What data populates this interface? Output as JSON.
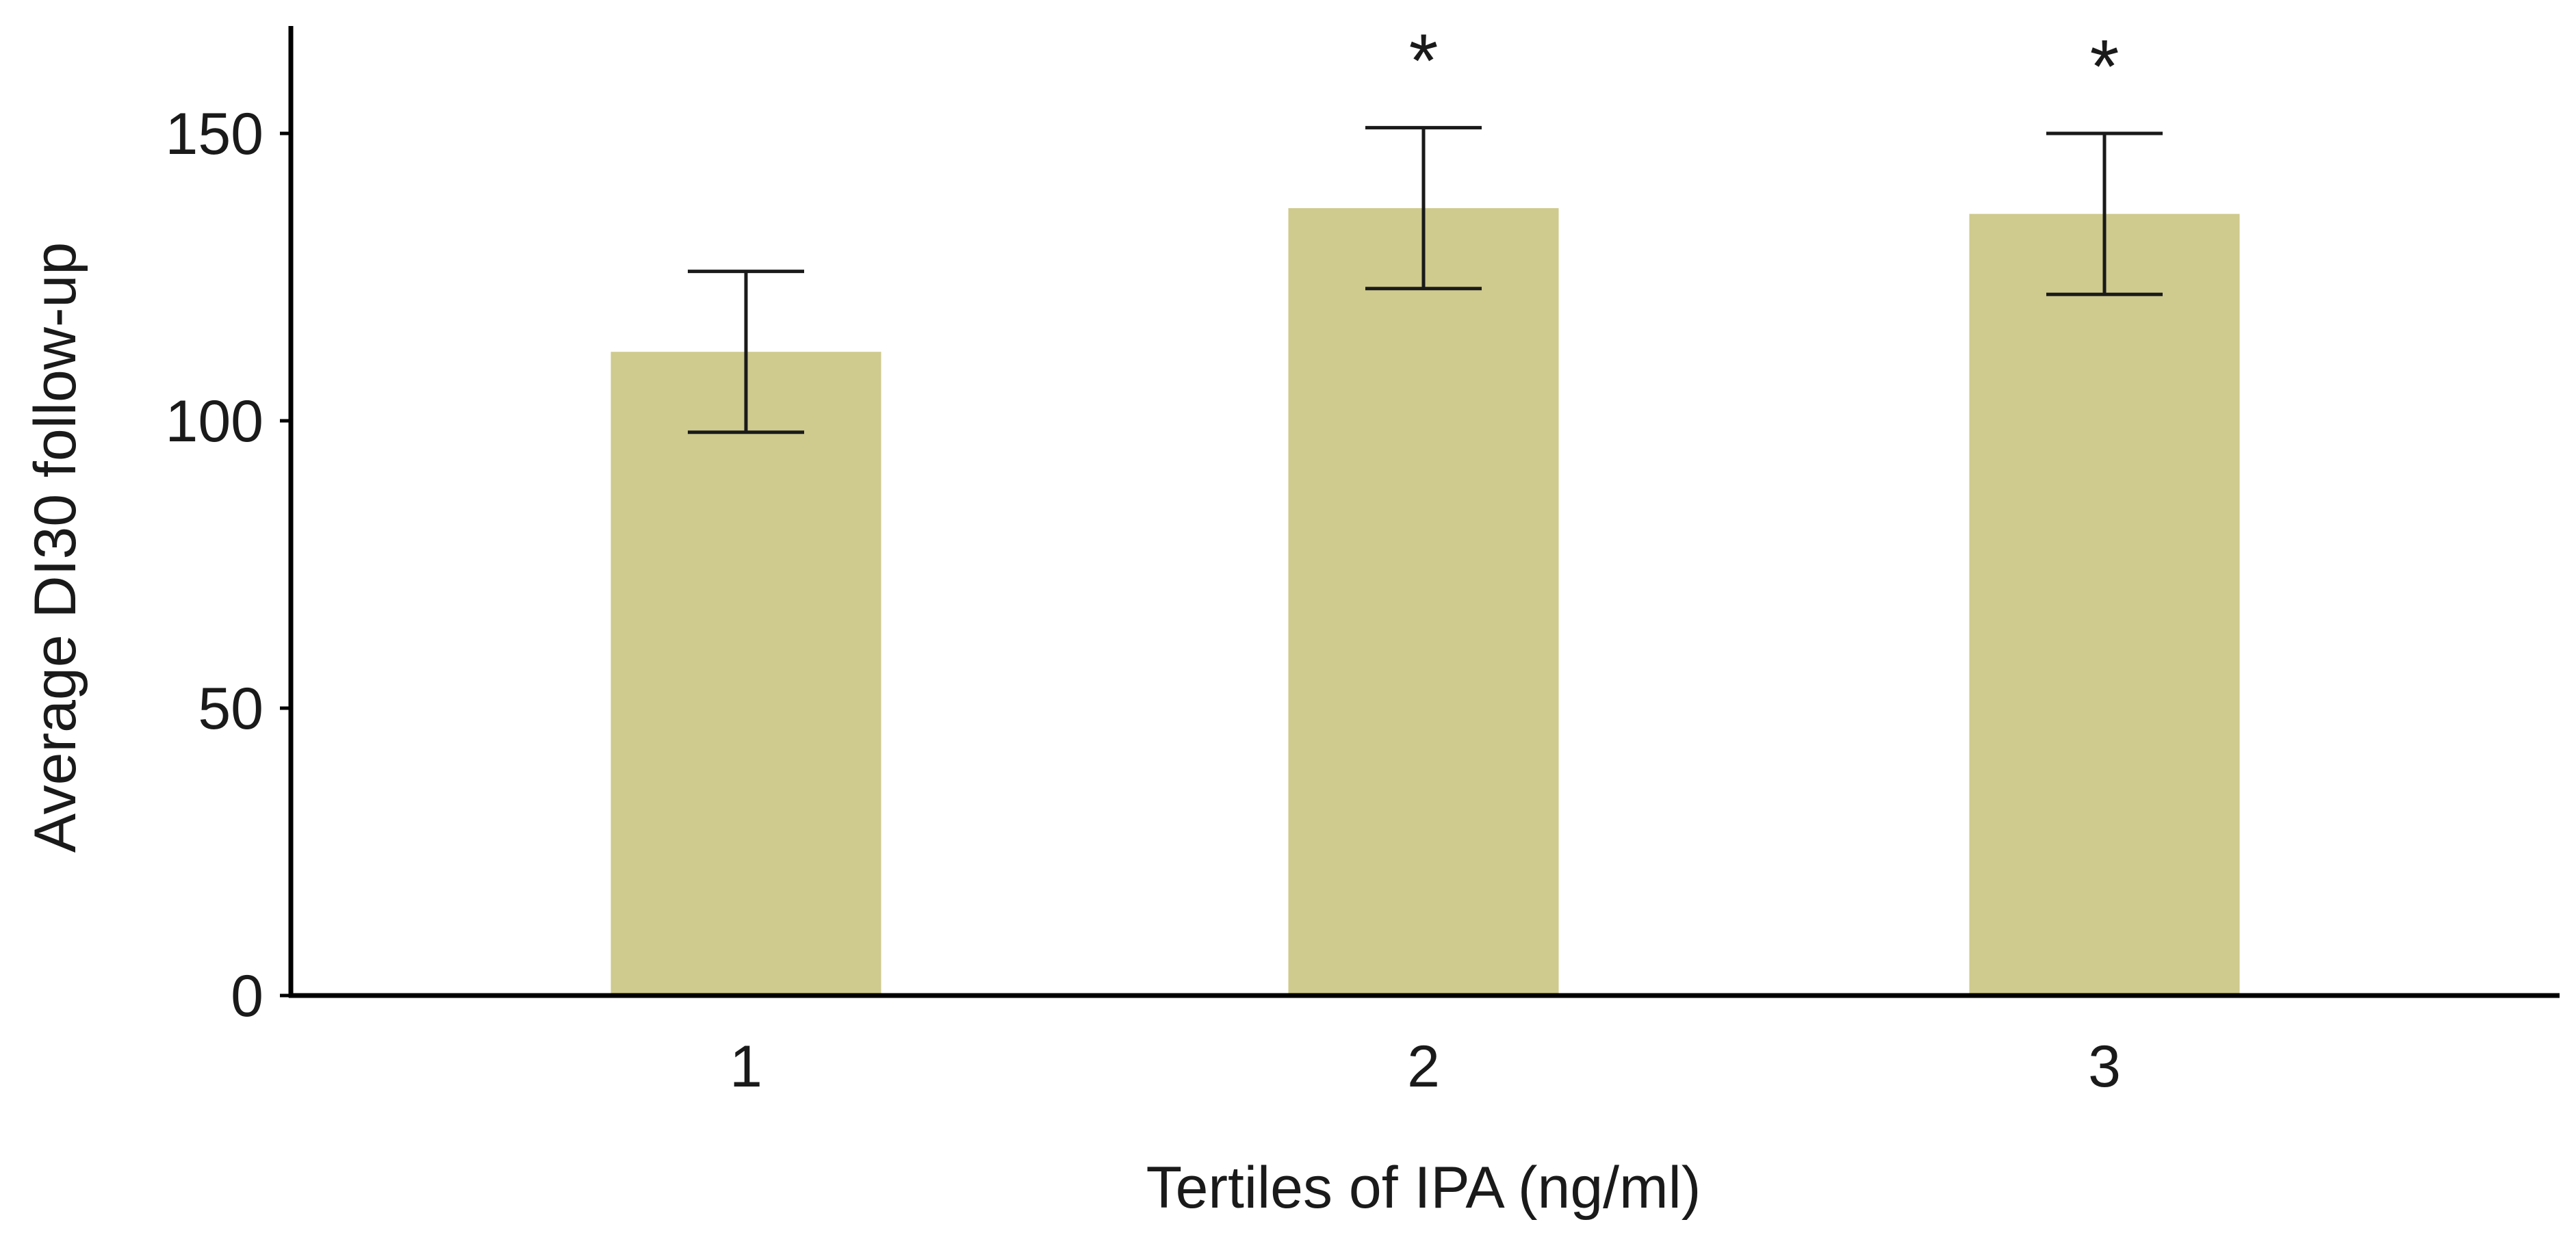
{
  "chart_data": {
    "type": "bar",
    "title": "",
    "xlabel": "Tertiles of IPA (ng/ml)",
    "ylabel": "Average DI30 follow-up",
    "categories": [
      "1",
      "2",
      "3"
    ],
    "values": [
      112,
      137,
      136
    ],
    "error_low": [
      98,
      123,
      122
    ],
    "error_high": [
      126,
      151,
      150
    ],
    "significance": [
      "",
      "*",
      "*"
    ],
    "ylim": [
      0,
      168
    ],
    "yticks": [
      0,
      50,
      100,
      150
    ],
    "grid": false,
    "bar_color": "#cfca8e",
    "axis_color": "#000000"
  }
}
